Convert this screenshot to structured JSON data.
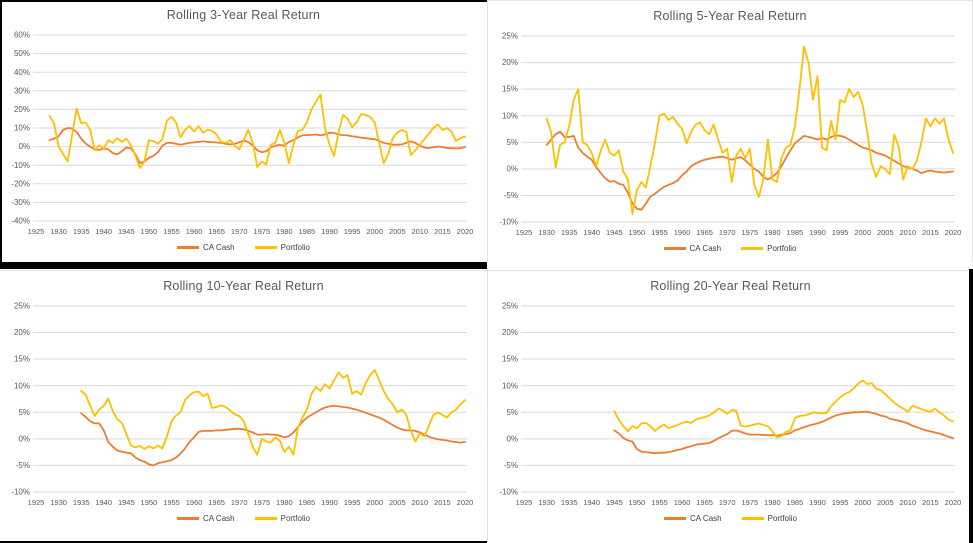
{
  "window": {
    "background": "#FFFFFF"
  },
  "colors": {
    "ca_cash": "#ED7D31",
    "portfolio": "#FFC000",
    "gridline": "#D9D9D9",
    "axis_text": "#595959",
    "title_text": "#595959",
    "window_border": "#000000",
    "panel_border": "#E3E3E3"
  },
  "chart_data": [
    {
      "type": "line",
      "title": "Rolling 3-Year Real Return",
      "ylabel_format": "percent",
      "ylim": [
        -40,
        60
      ],
      "ytick_step": 10,
      "xlim": [
        1925,
        2020
      ],
      "xtick_step": 5,
      "grid": true,
      "legend_position": "bottom",
      "series": [
        {
          "name": "CA Cash",
          "color": "#ED7D31",
          "start_year": 1928,
          "values": [
            3.5,
            4.3,
            5.5,
            9.0,
            10.0,
            9.8,
            7.9,
            4.3,
            1.6,
            0.0,
            -1.5,
            -1.8,
            -1.0,
            -1.5,
            -3.5,
            -4.2,
            -2.5,
            -0.5,
            -1.0,
            -4.0,
            -8.8,
            -8.0,
            -6.0,
            -5.0,
            -3.0,
            0.5,
            2.0,
            2.0,
            1.5,
            1.0,
            1.5,
            2.0,
            2.3,
            2.5,
            2.8,
            2.5,
            2.4,
            2.2,
            2.0,
            1.5,
            1.2,
            1.5,
            2.3,
            3.3,
            2.5,
            0.5,
            -2.0,
            -3.0,
            -2.5,
            -0.5,
            0.5,
            1.0,
            0.5,
            2.5,
            3.5,
            5.0,
            6.0,
            6.2,
            6.3,
            6.5,
            6.0,
            6.5,
            7.5,
            7.3,
            6.5,
            6.2,
            6.0,
            5.5,
            5.3,
            4.8,
            4.5,
            4.2,
            4.0,
            3.0,
            2.0,
            1.5,
            1.0,
            1.0,
            1.2,
            2.0,
            2.8,
            2.0,
            0.5,
            -0.5,
            -0.8,
            -0.3,
            0.0,
            -0.2,
            -0.8,
            -0.8,
            -1.0,
            -0.8,
            -0.2
          ]
        },
        {
          "name": "Portfolio",
          "color": "#FFC000",
          "start_year": 1928,
          "values": [
            16.5,
            12.5,
            0.0,
            -4.0,
            -8.0,
            6.0,
            20.5,
            12.5,
            13.0,
            9.0,
            -2.0,
            0.7,
            -1.1,
            3.4,
            2.0,
            4.5,
            2.5,
            4.3,
            0.7,
            -4.7,
            -11.5,
            -8.0,
            3.5,
            3.0,
            1.5,
            4.0,
            14.0,
            16.0,
            13.0,
            5.0,
            9.0,
            11.0,
            8.0,
            11.0,
            7.5,
            9.0,
            8.5,
            6.5,
            2.5,
            2.0,
            3.5,
            0.5,
            -1.5,
            3.5,
            9.0,
            2.0,
            -11.0,
            -8.0,
            -9.5,
            1.0,
            2.0,
            9.0,
            2.0,
            -9.0,
            1.0,
            8.5,
            9.0,
            13.0,
            20.0,
            24.0,
            28.0,
            10.0,
            1.0,
            -5.0,
            8.0,
            17.0,
            15.0,
            10.5,
            13.0,
            17.5,
            17.0,
            16.0,
            13.0,
            2.0,
            -9.0,
            -4.0,
            4.5,
            7.5,
            9.0,
            8.0,
            -4.5,
            -2.0,
            1.0,
            4.0,
            7.0,
            10.0,
            12.0,
            9.0,
            10.0,
            8.0,
            3.0,
            4.5,
            5.5
          ]
        }
      ]
    },
    {
      "type": "line",
      "title": "Rolling 5-Year Real Return",
      "ylabel_format": "percent",
      "ylim": [
        -10,
        25
      ],
      "ytick_step": 5,
      "xlim": [
        1925,
        2020
      ],
      "xtick_step": 5,
      "grid": true,
      "legend_position": "bottom",
      "series": [
        {
          "name": "CA Cash",
          "color": "#ED7D31",
          "start_year": 1930,
          "values": [
            4.5,
            5.5,
            6.5,
            7.0,
            6.0,
            6.0,
            6.2,
            4.0,
            3.0,
            2.3,
            1.7,
            0.3,
            -0.8,
            -1.8,
            -2.4,
            -2.3,
            -2.8,
            -3.0,
            -4.5,
            -6.5,
            -7.5,
            -7.7,
            -6.5,
            -5.2,
            -4.7,
            -4.0,
            -3.4,
            -3.0,
            -2.7,
            -2.2,
            -1.2,
            -0.5,
            0.5,
            1.0,
            1.4,
            1.7,
            1.9,
            2.1,
            2.2,
            2.3,
            2.0,
            1.7,
            2.0,
            2.2,
            1.6,
            0.8,
            0.0,
            -0.5,
            -1.5,
            -2.0,
            -1.5,
            -0.8,
            0.5,
            2.0,
            3.5,
            4.8,
            5.5,
            6.2,
            6.0,
            5.8,
            5.5,
            5.8,
            5.5,
            6.0,
            6.3,
            6.2,
            6.0,
            5.5,
            5.0,
            4.5,
            4.0,
            3.8,
            3.5,
            3.0,
            2.8,
            2.5,
            2.0,
            1.5,
            1.0,
            0.5,
            0.3,
            0.0,
            -0.3,
            -0.8,
            -0.5,
            -0.3,
            -0.5,
            -0.6,
            -0.7,
            -0.6,
            -0.5
          ]
        },
        {
          "name": "Portfolio",
          "color": "#FFC000",
          "start_year": 1930,
          "values": [
            9.5,
            7.0,
            0.3,
            4.5,
            5.0,
            8.0,
            13.0,
            15.0,
            5.0,
            4.5,
            3.0,
            0.5,
            3.5,
            5.5,
            3.0,
            2.5,
            3.5,
            -0.5,
            -2.0,
            -8.5,
            -4.0,
            -2.5,
            -3.5,
            0.5,
            5.0,
            10.0,
            10.4,
            9.2,
            9.8,
            8.5,
            7.5,
            4.8,
            7.0,
            8.3,
            8.7,
            7.3,
            6.5,
            8.3,
            5.5,
            3.0,
            3.8,
            -2.5,
            2.5,
            3.8,
            2.0,
            3.8,
            -3.0,
            -5.3,
            -2.0,
            5.5,
            -2.0,
            -2.5,
            2.0,
            4.0,
            4.5,
            8.0,
            15.0,
            23.0,
            20.0,
            13.0,
            17.5,
            4.0,
            3.5,
            9.0,
            5.5,
            13.0,
            12.5,
            15.0,
            13.5,
            14.5,
            12.0,
            7.0,
            1.0,
            -1.5,
            0.5,
            0.0,
            -1.0,
            6.5,
            4.0,
            -2.0,
            0.5,
            0.0,
            1.5,
            5.0,
            9.5,
            8.0,
            9.5,
            8.5,
            9.5,
            5.5,
            3.0
          ]
        }
      ]
    },
    {
      "type": "line",
      "title": "Rolling 10-Year Real Return",
      "ylabel_format": "percent",
      "ylim": [
        -10,
        25
      ],
      "ytick_step": 5,
      "xlim": [
        1925,
        2020
      ],
      "xtick_step": 5,
      "grid": true,
      "legend_position": "bottom",
      "series": [
        {
          "name": "CA Cash",
          "color": "#ED7D31",
          "start_year": 1935,
          "values": [
            4.8,
            4.1,
            3.3,
            2.9,
            2.9,
            1.6,
            -0.6,
            -1.5,
            -2.2,
            -2.4,
            -2.6,
            -2.7,
            -3.5,
            -4.0,
            -4.3,
            -4.8,
            -5.0,
            -4.6,
            -4.4,
            -4.2,
            -4.0,
            -3.5,
            -2.8,
            -1.8,
            -0.6,
            0.3,
            1.3,
            1.5,
            1.5,
            1.5,
            1.6,
            1.6,
            1.7,
            1.8,
            1.9,
            1.9,
            1.8,
            1.5,
            1.2,
            0.8,
            0.8,
            0.9,
            0.8,
            0.8,
            0.6,
            0.3,
            0.5,
            1.2,
            2.2,
            3.2,
            4.0,
            4.5,
            5.0,
            5.5,
            5.9,
            6.1,
            6.2,
            6.1,
            6.0,
            5.9,
            5.7,
            5.5,
            5.2,
            4.9,
            4.6,
            4.3,
            4.0,
            3.6,
            3.1,
            2.6,
            2.1,
            1.8,
            1.6,
            1.6,
            1.5,
            1.2,
            0.8,
            0.4,
            0.1,
            -0.1,
            -0.2,
            -0.3,
            -0.5,
            -0.6,
            -0.7,
            -0.6
          ]
        },
        {
          "name": "Portfolio",
          "color": "#FFC000",
          "start_year": 1935,
          "values": [
            9.0,
            8.3,
            6.2,
            4.3,
            5.5,
            6.2,
            7.6,
            5.2,
            3.7,
            3.0,
            1.0,
            -1.2,
            -1.6,
            -1.3,
            -1.9,
            -1.4,
            -1.8,
            -1.3,
            -1.8,
            0.5,
            3.3,
            4.4,
            5.0,
            7.3,
            8.2,
            8.8,
            8.9,
            8.0,
            8.5,
            5.8,
            6.0,
            6.3,
            6.0,
            5.3,
            4.6,
            4.3,
            3.3,
            1.0,
            -1.5,
            -3.0,
            0.0,
            -0.5,
            -0.7,
            0.3,
            -0.4,
            -2.5,
            -1.5,
            -3.0,
            2.0,
            4.0,
            5.5,
            8.5,
            9.8,
            9.0,
            10.3,
            9.5,
            11.0,
            12.5,
            11.5,
            12.0,
            8.5,
            9.0,
            8.3,
            10.5,
            12.0,
            13.0,
            11.0,
            9.0,
            7.5,
            6.5,
            5.0,
            5.5,
            4.5,
            1.5,
            -0.5,
            1.0,
            0.5,
            2.5,
            4.5,
            5.0,
            4.5,
            4.0,
            5.0,
            5.5,
            6.5,
            7.3
          ]
        }
      ]
    },
    {
      "type": "line",
      "title": "Rolling 20-Year Real Return",
      "ylabel_format": "percent",
      "ylim": [
        -10,
        25
      ],
      "ytick_step": 5,
      "xlim": [
        1925,
        2020
      ],
      "xtick_step": 5,
      "grid": true,
      "legend_position": "bottom",
      "series": [
        {
          "name": "CA Cash",
          "color": "#ED7D31",
          "start_year": 1945,
          "values": [
            1.6,
            1.0,
            0.2,
            -0.3,
            -0.5,
            -1.9,
            -2.4,
            -2.5,
            -2.6,
            -2.7,
            -2.6,
            -2.6,
            -2.5,
            -2.3,
            -2.1,
            -1.9,
            -1.6,
            -1.4,
            -1.1,
            -1.0,
            -0.9,
            -0.8,
            -0.4,
            0.1,
            0.5,
            0.9,
            1.5,
            1.6,
            1.3,
            1.0,
            0.8,
            0.8,
            0.8,
            0.7,
            0.7,
            0.7,
            0.6,
            0.8,
            0.9,
            1.1,
            1.6,
            1.9,
            2.2,
            2.5,
            2.7,
            2.9,
            3.2,
            3.6,
            4.0,
            4.4,
            4.6,
            4.8,
            4.9,
            5.0,
            5.0,
            5.1,
            5.1,
            4.9,
            4.7,
            4.4,
            4.2,
            3.8,
            3.6,
            3.4,
            3.2,
            2.9,
            2.5,
            2.2,
            1.9,
            1.6,
            1.4,
            1.2,
            1.0,
            0.7,
            0.4,
            0.15
          ]
        },
        {
          "name": "Portfolio",
          "color": "#FFC000",
          "start_year": 1945,
          "values": [
            5.2,
            3.6,
            2.4,
            1.4,
            2.4,
            2.0,
            2.9,
            3.0,
            2.4,
            1.5,
            2.2,
            2.7,
            2.0,
            2.3,
            2.6,
            3.0,
            3.2,
            3.0,
            3.6,
            3.9,
            4.1,
            4.4,
            4.9,
            5.7,
            5.4,
            4.7,
            5.4,
            5.3,
            2.5,
            2.3,
            2.5,
            2.7,
            2.9,
            2.6,
            2.4,
            1.4,
            0.3,
            0.5,
            1.3,
            1.6,
            3.9,
            4.3,
            4.4,
            4.6,
            5.0,
            4.9,
            4.8,
            4.9,
            6.1,
            7.0,
            7.8,
            8.4,
            8.8,
            9.5,
            10.4,
            11.0,
            10.3,
            10.5,
            9.4,
            9.2,
            8.4,
            7.6,
            6.8,
            6.2,
            5.7,
            5.1,
            6.2,
            5.9,
            5.6,
            5.3,
            5.1,
            5.7,
            5.0,
            4.4,
            3.6,
            3.3
          ]
        }
      ]
    }
  ]
}
